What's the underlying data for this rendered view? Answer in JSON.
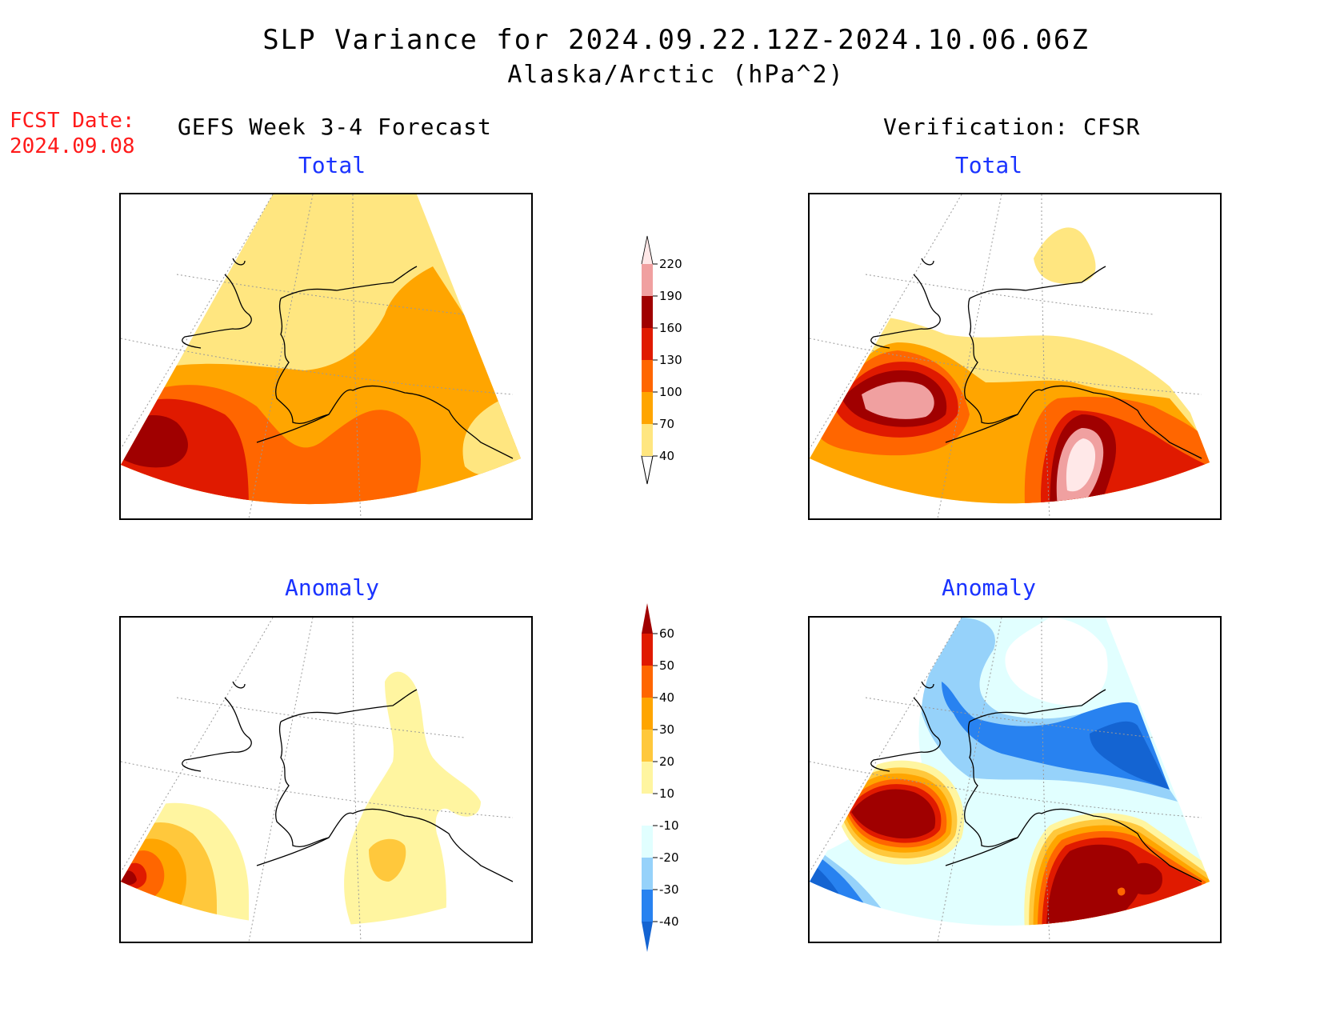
{
  "header": {
    "title": "SLP Variance for 2024.09.22.12Z-2024.10.06.06Z",
    "subtitle": "Alaska/Arctic (hPa^2)",
    "fcst_date_label": "FCST Date:",
    "fcst_date_value": "2024.09.08",
    "left_column_title": "GEFS Week 3-4 Forecast",
    "right_column_title": "Verification: CFSR"
  },
  "panels": {
    "forecast_total": {
      "label": "Total"
    },
    "verification_total": {
      "label": "Total"
    },
    "forecast_anomaly": {
      "label": "Anomaly"
    },
    "verification_anomaly": {
      "label": "Anomaly"
    }
  },
  "colorbars": {
    "total": {
      "ticks": [
        "40",
        "70",
        "100",
        "130",
        "160",
        "190",
        "220"
      ],
      "colors": [
        "#ffe680",
        "#ffa500",
        "#ff6600",
        "#e01a00",
        "#a00000",
        "#f0a0a0",
        "#ffe8e8"
      ]
    },
    "anomaly": {
      "ticks": [
        "-40",
        "-30",
        "-20",
        "-10",
        "10",
        "20",
        "30",
        "40",
        "50",
        "60"
      ],
      "colors": [
        "#1464d2",
        "#2882f0",
        "#96d2fa",
        "#e1ffff",
        "#ffffff",
        "#fff5a0",
        "#ffc83c",
        "#ffa500",
        "#ff6600",
        "#e01a00",
        "#a00000"
      ]
    }
  }
}
